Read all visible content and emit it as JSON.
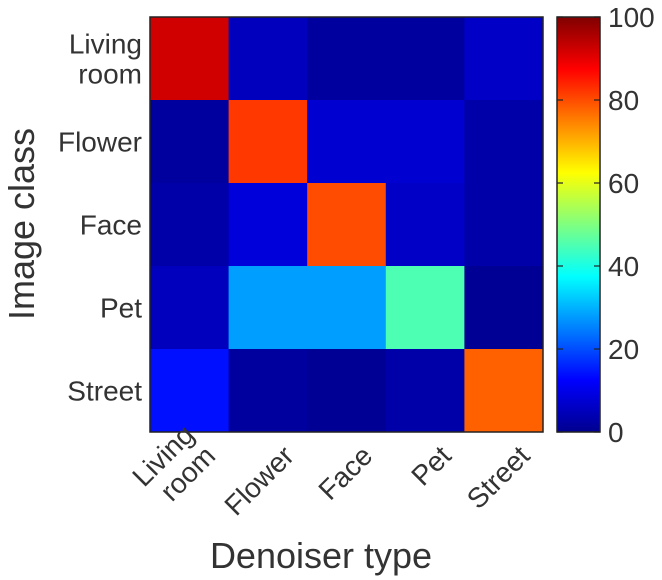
{
  "chart_data": {
    "type": "heatmap",
    "title": "",
    "xlabel": "Denoiser type",
    "ylabel": "Image class",
    "x_categories": [
      [
        "Living",
        "room"
      ],
      [
        "Flower"
      ],
      [
        "Face"
      ],
      [
        "Pet"
      ],
      [
        "Street"
      ]
    ],
    "y_categories": [
      [
        "Living",
        "room"
      ],
      [
        "Flower"
      ],
      [
        "Face"
      ],
      [
        "Pet"
      ],
      [
        "Street"
      ]
    ],
    "values": [
      [
        92,
        6,
        3,
        3,
        7
      ],
      [
        3,
        82,
        8,
        8,
        4
      ],
      [
        4,
        9,
        80,
        7,
        4
      ],
      [
        6,
        28,
        28,
        45,
        2
      ],
      [
        14,
        3,
        2,
        4,
        78
      ]
    ],
    "colorbar": {
      "min": 0,
      "max": 100,
      "ticks": [
        0,
        20,
        40,
        60,
        80,
        100
      ],
      "colormap": "jet"
    }
  }
}
